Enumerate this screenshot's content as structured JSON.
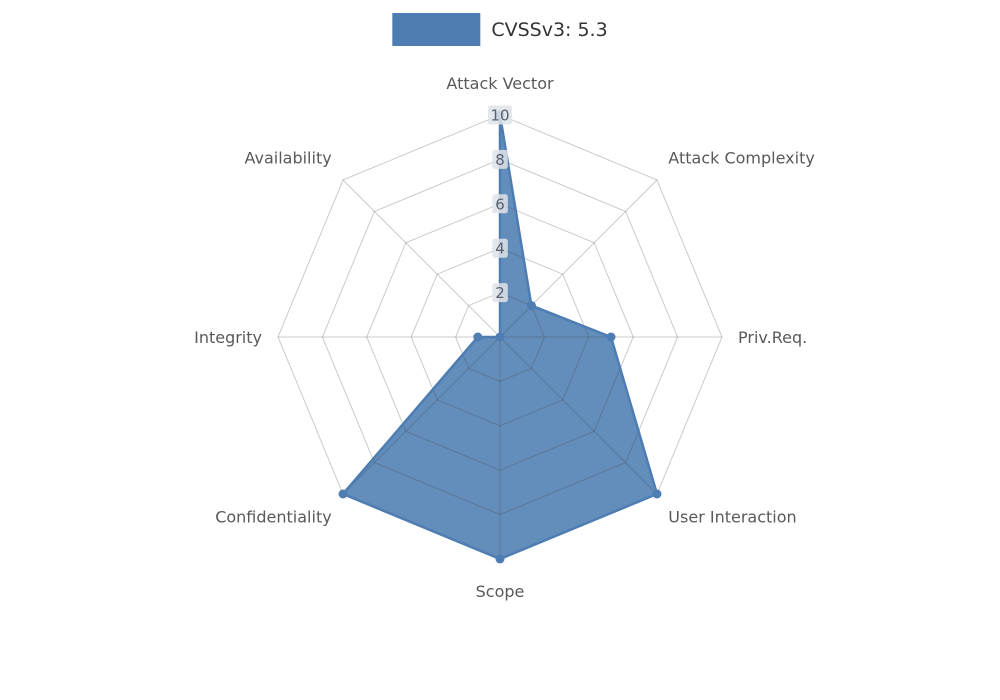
{
  "chart_data": {
    "type": "radar",
    "title": "CVSSv3: 5.3",
    "legend_position": "top-center",
    "categories": [
      "Attack Vector",
      "Attack Complexity",
      "Priv.Req.",
      "User Interaction",
      "Scope",
      "Confidentiality",
      "Integrity",
      "Availability"
    ],
    "series": [
      {
        "name": "CVSSv3: 5.3",
        "color": "#4d7db2",
        "fill_opacity": 0.88,
        "values": [
          10,
          2,
          5,
          10,
          10,
          10,
          1,
          0
        ]
      }
    ],
    "radial_ticks": [
      2,
      4,
      6,
      8,
      10
    ],
    "rlim": [
      0,
      10
    ],
    "grid": true,
    "grid_shape": "polygon",
    "colors": {
      "grid": "rgba(70,70,70,0.28)",
      "axis_label": "#595959",
      "tick_label": "#5a6270",
      "tick_box": "#dfe3e8",
      "legend_text": "#333333",
      "background": "#ffffff"
    }
  }
}
